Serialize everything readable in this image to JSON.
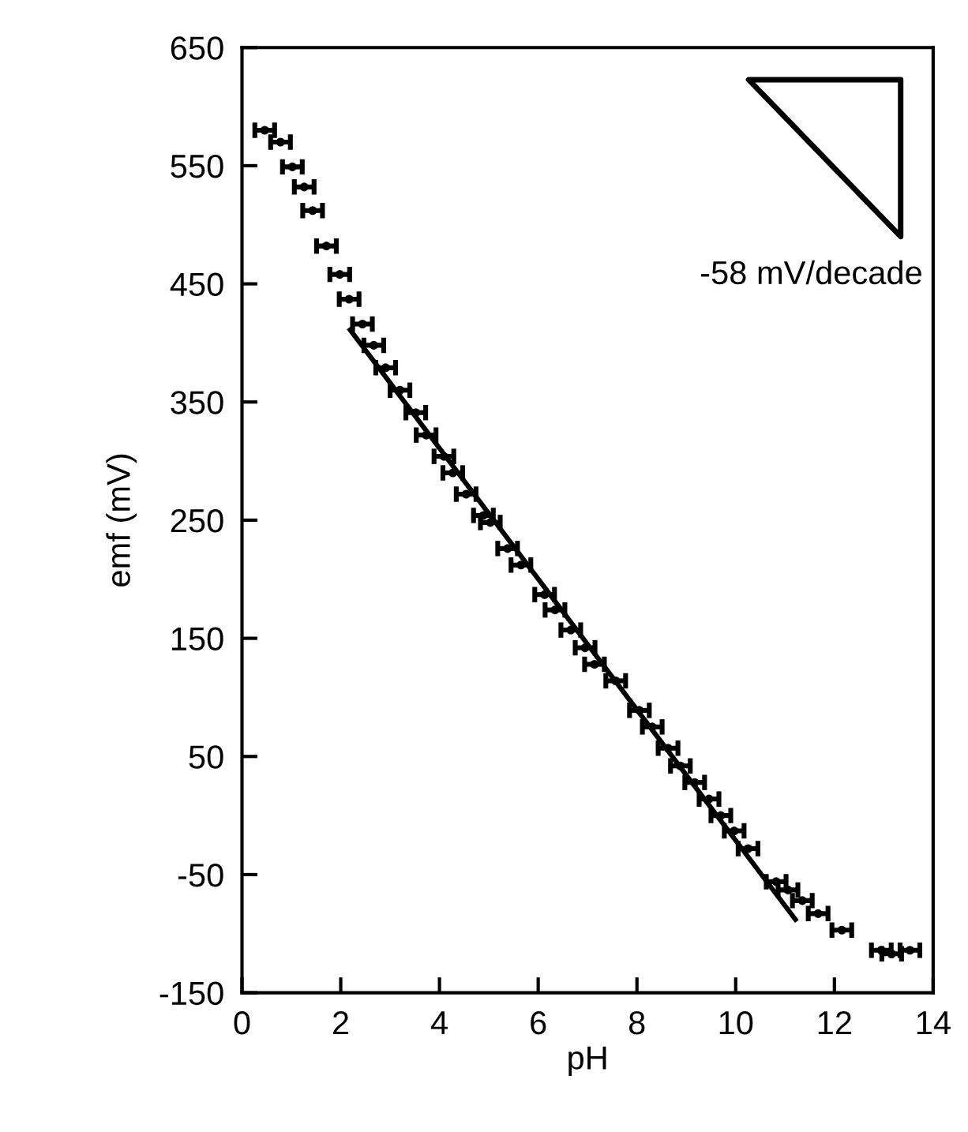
{
  "chart_data": {
    "type": "scatter",
    "xlabel": "pH",
    "ylabel": "emf (mV)",
    "xlim": [
      0,
      14
    ],
    "ylim": [
      -150,
      650
    ],
    "xticks": [
      0,
      2,
      4,
      6,
      8,
      10,
      12,
      14
    ],
    "yticks": [
      -150,
      -50,
      50,
      150,
      250,
      350,
      450,
      550,
      650
    ],
    "grid": false,
    "legend": false,
    "annotations": [
      "-58 mV/decade"
    ],
    "series": [
      {
        "type": "scatter",
        "color": "#000000",
        "marker": "circle",
        "x": [
          0.46,
          0.78,
          1.02,
          1.26,
          1.43,
          1.71,
          1.98,
          2.17,
          2.44,
          2.67,
          2.91,
          3.2,
          3.52,
          3.73,
          4.09,
          4.27,
          4.54,
          4.89,
          5.03,
          5.38,
          5.65,
          6.13,
          6.34,
          6.66,
          6.95,
          7.14,
          7.57,
          8.05,
          8.31,
          8.63,
          8.88,
          9.17,
          9.46,
          9.7,
          9.97,
          10.25,
          10.82,
          11.06,
          11.35,
          11.67,
          12.15,
          12.95,
          13.16,
          13.53
        ],
        "values": [
          580,
          570,
          549,
          532,
          512,
          482,
          458,
          437,
          416,
          398,
          379,
          360,
          341,
          322,
          304,
          290,
          272,
          254,
          248,
          226,
          212,
          187,
          174,
          157,
          142,
          128,
          114,
          89,
          75,
          57,
          42,
          28,
          14,
          0,
          -13,
          -28,
          -56,
          -63,
          -72,
          -83,
          -97,
          -114,
          -117,
          -114
        ],
        "xerrors": [
          0.2,
          0.2,
          0.2,
          0.2,
          0.2,
          0.2,
          0.2,
          0.2,
          0.2,
          0.2,
          0.2,
          0.2,
          0.2,
          0.2,
          0.2,
          0.2,
          0.2,
          0.2,
          0.2,
          0.2,
          0.2,
          0.2,
          0.2,
          0.2,
          0.2,
          0.2,
          0.2,
          0.2,
          0.2,
          0.2,
          0.2,
          0.2,
          0.2,
          0.2,
          0.2,
          0.2,
          0.2,
          0.2,
          0.2,
          0.2,
          0.2,
          0.2,
          0.2,
          0.2
        ]
      },
      {
        "type": "line",
        "color": "#000000",
        "line_style": "solid",
        "marker": "none",
        "x": [
          2.19,
          11.21
        ],
        "values": [
          411,
          -88
        ]
      }
    ]
  }
}
